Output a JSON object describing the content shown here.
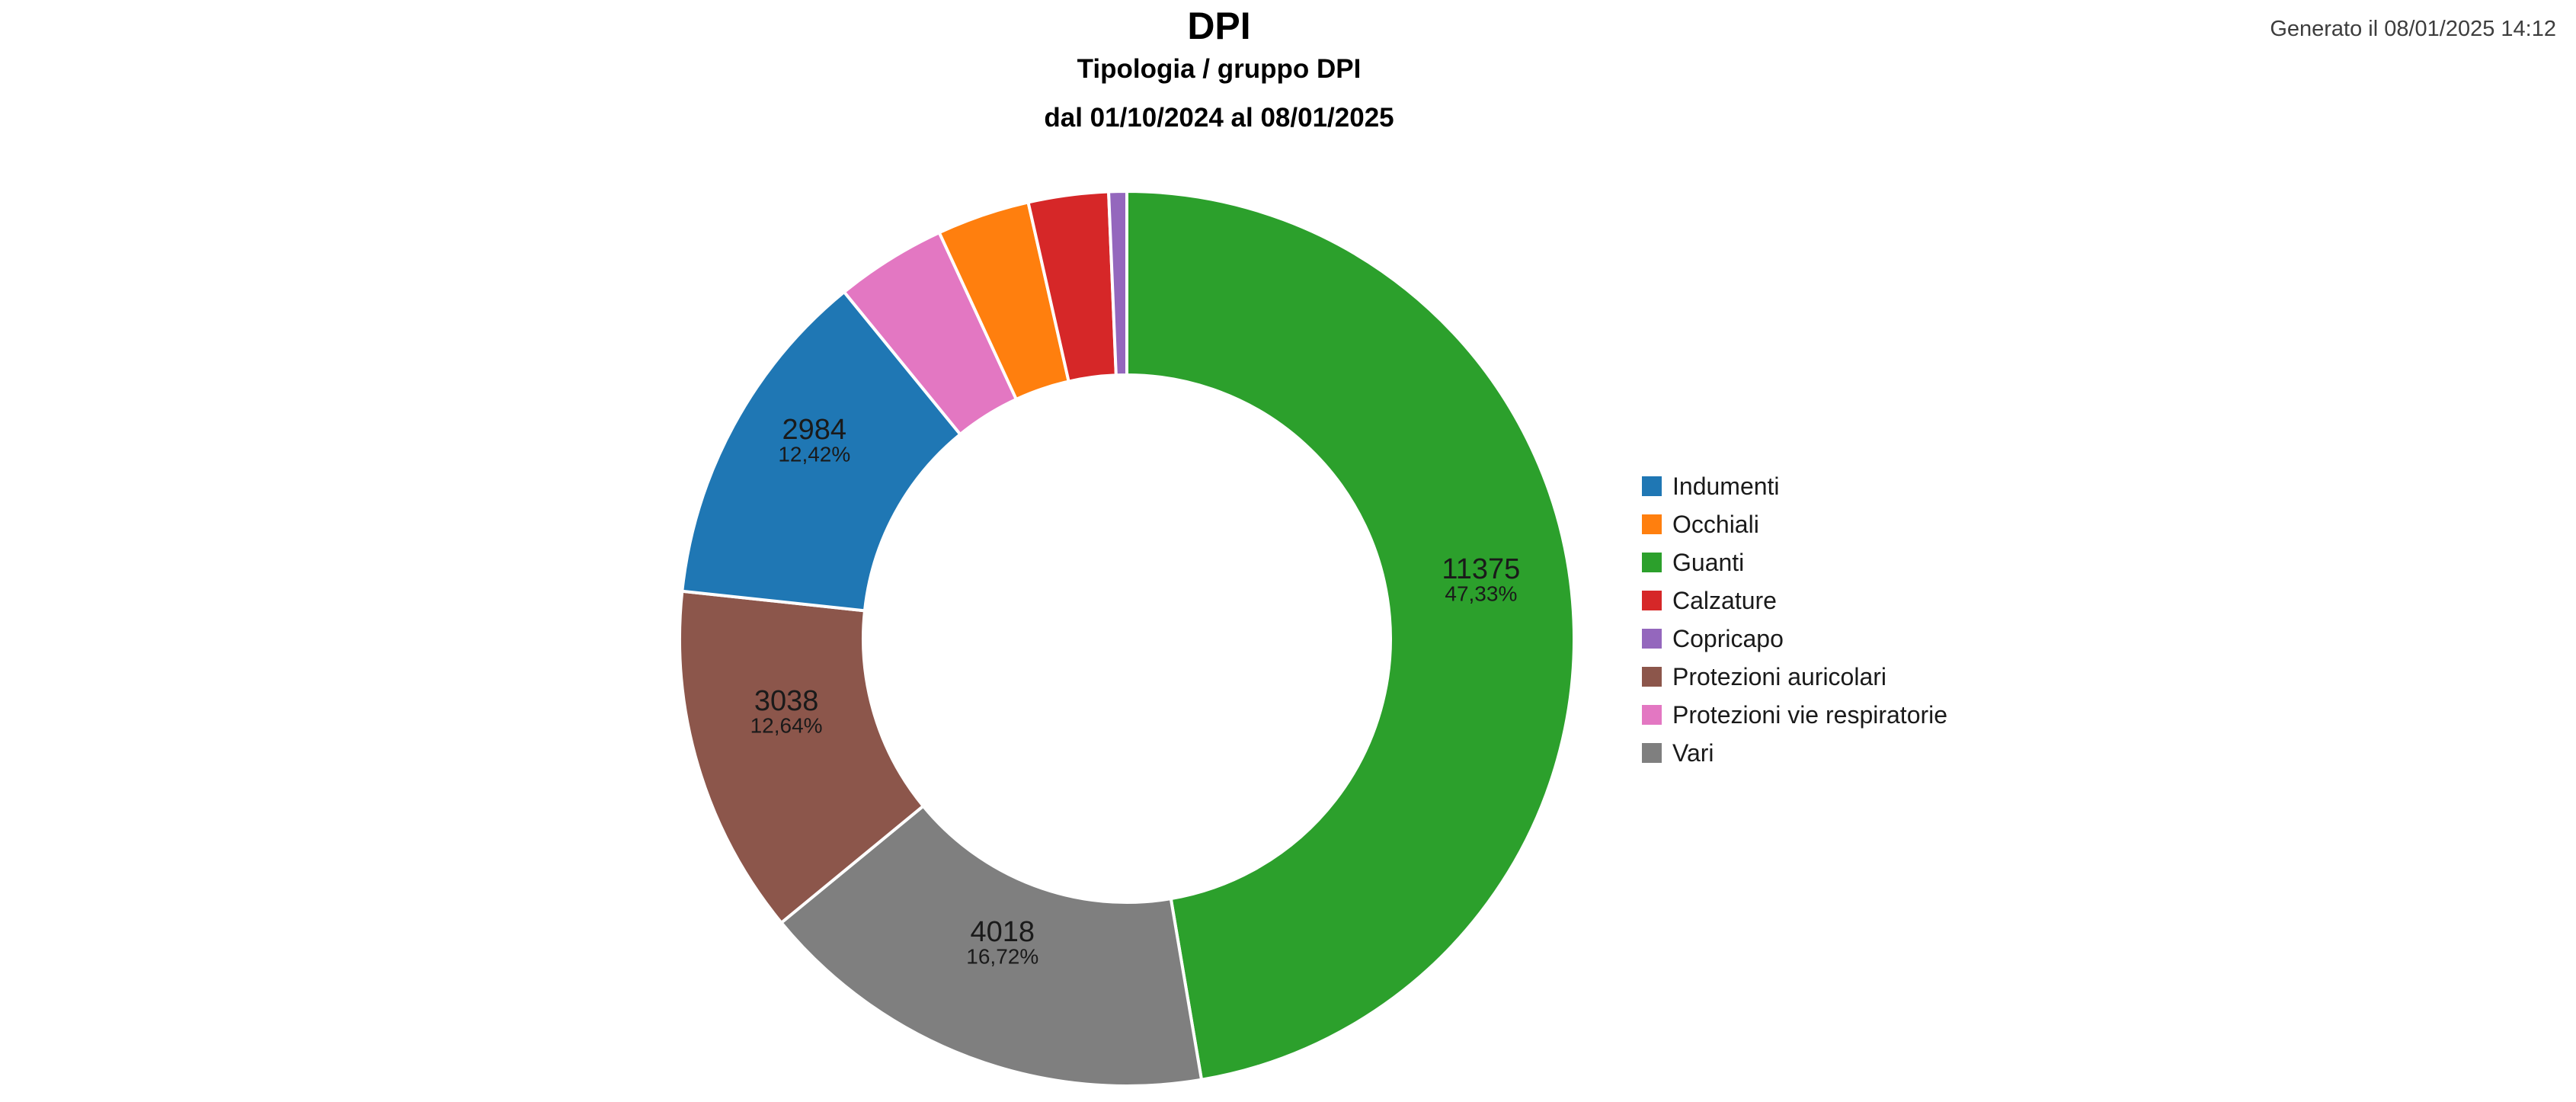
{
  "header": {
    "title": "DPI",
    "subtitle": "Tipologia / gruppo DPI",
    "date_range": "dal 01/10/2024 al 08/01/2025"
  },
  "generated_label": "Generato il 08/01/2025 14:12",
  "chart_data": {
    "type": "pie",
    "donut": true,
    "hole_ratio": 0.59,
    "start_angle_deg": 0,
    "direction": "clockwise",
    "grid": false,
    "legend_position": "right",
    "title": "DPI",
    "subtitle": "Tipologia / gruppo DPI",
    "period": "dal 01/10/2024 al 08/01/2025",
    "legend_order": [
      "Indumenti",
      "Occhiali",
      "Guanti",
      "Calzature",
      "Copricapo",
      "Protezioni auricolari",
      "Protezioni vie respiratorie",
      "Vari"
    ],
    "slices": [
      {
        "label": "Guanti",
        "color": "#2ca02c",
        "value": 11375,
        "value_text": "11375",
        "pct": 47.33,
        "pct_text": "47,33%",
        "labeled": true
      },
      {
        "label": "Vari",
        "color": "#7f7f7f",
        "value": 4018,
        "value_text": "4018",
        "pct": 16.72,
        "pct_text": "16,72%",
        "labeled": true
      },
      {
        "label": "Protezioni auricolari",
        "color": "#8c564b",
        "value": 3038,
        "value_text": "3038",
        "pct": 12.64,
        "pct_text": "12,64%",
        "labeled": true
      },
      {
        "label": "Indumenti",
        "color": "#1f77b4",
        "value": 2984,
        "value_text": "2984",
        "pct": 12.42,
        "pct_text": "12,42%",
        "labeled": true
      },
      {
        "label": "Protezioni vie respiratorie",
        "color": "#e377c2",
        "pct": 4.0,
        "pct_estimated": true,
        "labeled": false
      },
      {
        "label": "Occhiali",
        "color": "#ff7f0e",
        "pct": 3.35,
        "pct_estimated": true,
        "labeled": false
      },
      {
        "label": "Calzature",
        "color": "#d62728",
        "pct": 2.89,
        "pct_estimated": true,
        "labeled": false
      },
      {
        "label": "Copricapo",
        "color": "#9467bd",
        "pct": 0.65,
        "pct_estimated": true,
        "labeled": false
      }
    ]
  }
}
